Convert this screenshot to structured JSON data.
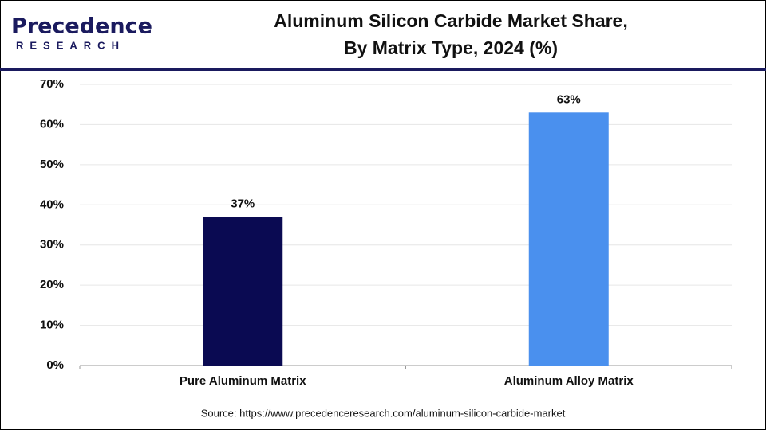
{
  "logo": {
    "name": "Precedence",
    "tagline": "RESEARCH"
  },
  "chart_data": {
    "type": "bar",
    "title": [
      "Aluminum Silicon Carbide Market Share,",
      "By Matrix Type, 2024 (%)"
    ],
    "categories": [
      "Pure Aluminum Matrix",
      "Aluminum Alloy Matrix"
    ],
    "values": [
      37,
      63
    ],
    "value_labels": [
      "37%",
      "63%"
    ],
    "colors": [
      "#0a0a52",
      "#4a90ee"
    ],
    "ylim": [
      0,
      70
    ],
    "yticks": [
      {
        "value": 0,
        "label": "0%"
      },
      {
        "value": 10,
        "label": "10%"
      },
      {
        "value": 20,
        "label": "20%"
      },
      {
        "value": 30,
        "label": "30%"
      },
      {
        "value": 40,
        "label": "40%"
      },
      {
        "value": 50,
        "label": "50%"
      },
      {
        "value": 60,
        "label": "60%"
      },
      {
        "value": 70,
        "label": "70%"
      }
    ],
    "grid": true,
    "source": "Source: https://www.precedenceresearch.com/aluminum-silicon-carbide-market"
  }
}
